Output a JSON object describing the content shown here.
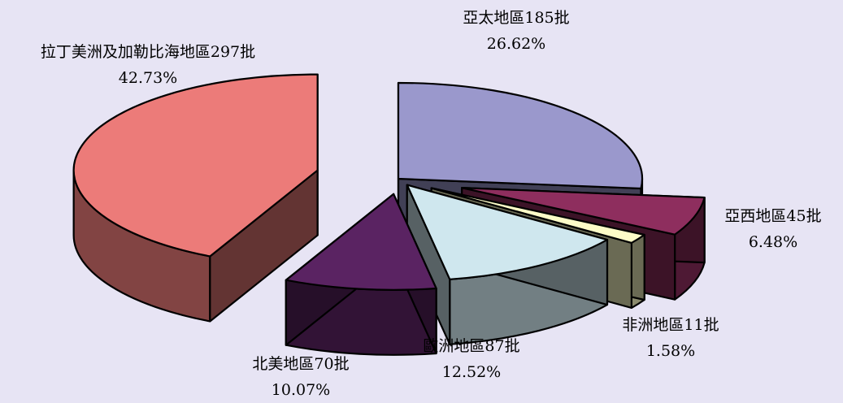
{
  "chart_data": {
    "type": "pie",
    "three_d": true,
    "exploded": true,
    "slices": [
      {
        "label": "亞太地區185批",
        "percent": "26.62%",
        "count": 185,
        "value": 26.62,
        "color": "#9a98cc"
      },
      {
        "label": "亞西地區45批",
        "percent": "6.48%",
        "count": 45,
        "value": 6.48,
        "color": "#8e2e5e"
      },
      {
        "label": "非洲地區11批",
        "percent": "1.58%",
        "count": 11,
        "value": 1.58,
        "color": "#fdfcc8"
      },
      {
        "label": "歐洲地區87批",
        "percent": "12.52%",
        "count": 87,
        "value": 12.52,
        "color": "#cfe7ee"
      },
      {
        "label": "北美地區70批",
        "percent": "10.07%",
        "count": 70,
        "value": 10.07,
        "color": "#5a2362"
      },
      {
        "label": "拉丁美洲及加勒比海地區297批",
        "percent": "42.73%",
        "count": 297,
        "value": 42.73,
        "color": "#ec7b79"
      }
    ]
  }
}
